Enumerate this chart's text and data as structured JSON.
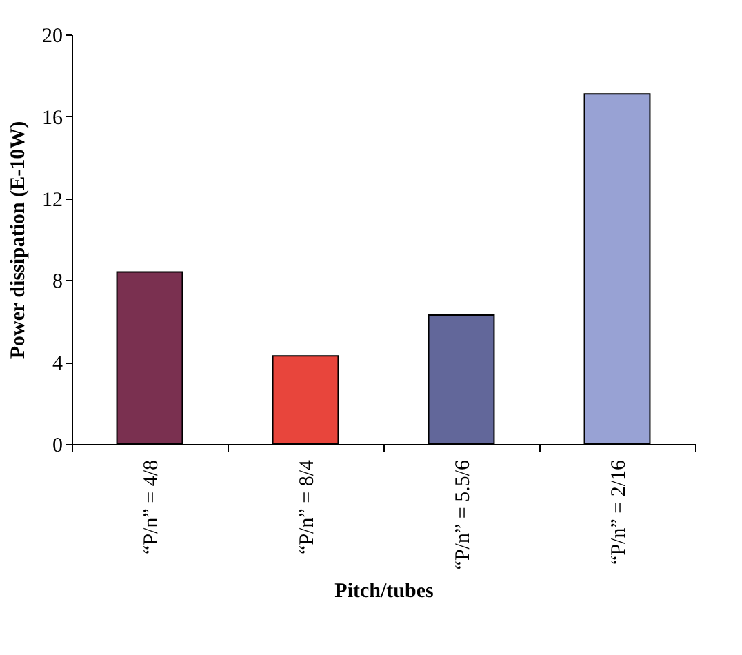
{
  "chart_data": {
    "type": "bar",
    "xlabel": "Pitch/tubes",
    "ylabel": "Power dissipation (E-10W)",
    "categories": [
      "“P/n” = 4/8",
      "“P/n” = 8/4",
      "“P/n” = 5.5/6",
      "“P/n” = 2/16"
    ],
    "values": [
      8.4,
      4.3,
      6.3,
      17.1
    ],
    "colors": [
      "#7a3050",
      "#e8453c",
      "#62679a",
      "#98a2d4"
    ],
    "ylim": [
      0,
      20
    ],
    "yticks": [
      0,
      4,
      8,
      12,
      16,
      20
    ],
    "grid": false,
    "legend": false
  }
}
